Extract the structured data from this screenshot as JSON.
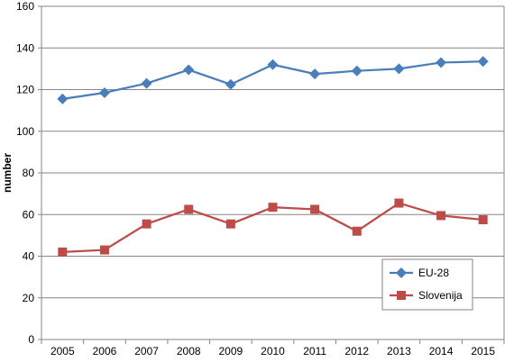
{
  "chart_data": {
    "type": "line",
    "title": "",
    "xlabel": "",
    "ylabel": "number",
    "ylim": [
      0,
      160
    ],
    "yticks": [
      0,
      20,
      40,
      60,
      80,
      100,
      120,
      140,
      160
    ],
    "grid": "horizontal",
    "legend_position": "bottom-right",
    "categories": [
      "2005",
      "2006",
      "2007",
      "2008",
      "2009",
      "2010",
      "2011",
      "2012",
      "2013",
      "2014",
      "2015"
    ],
    "series": [
      {
        "name": "EU-28",
        "color": "#4a7ebb",
        "marker": "diamond",
        "values": [
          115.5,
          118.5,
          123,
          129.5,
          122.5,
          132,
          127.5,
          129,
          130,
          133,
          133.5
        ]
      },
      {
        "name": "Slovenija",
        "color": "#be4b48",
        "marker": "square",
        "values": [
          42,
          43,
          55.5,
          62.5,
          55.5,
          63.5,
          62.5,
          52,
          65.5,
          59.5,
          57.5
        ]
      }
    ]
  }
}
